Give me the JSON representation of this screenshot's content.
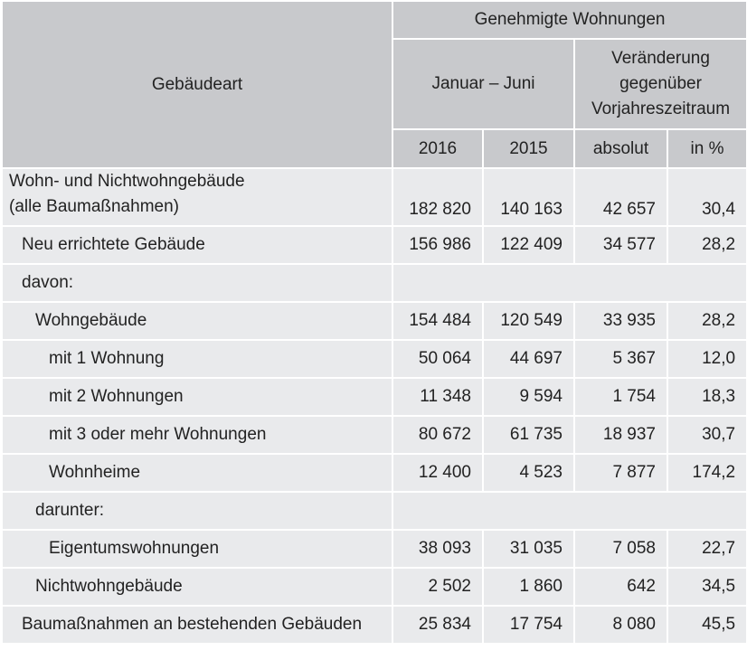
{
  "header": {
    "col_gebaeudeart": "Gebäudeart",
    "genehmigt": "Genehmigte Wohnungen",
    "period": "Januar – Juni",
    "change": "Veränderung gegenüber Vorjahreszeitraum",
    "y2016": "2016",
    "y2015": "2015",
    "absolut": "absolut",
    "pct": "in %"
  },
  "rows": [
    {
      "label_line1": "Wohn- und Nichtwohngebäude",
      "label_line2": "(alle Baumaßnahmen)",
      "v2016": "182 820",
      "v2015": "140 163",
      "abs": "42 657",
      "pct": "30,4"
    },
    {
      "label": "Neu errichtete Gebäude",
      "v2016": "156 986",
      "v2015": "122 409",
      "abs": "34 577",
      "pct": "28,2"
    },
    {
      "label": "davon:"
    },
    {
      "label": "Wohngebäude",
      "v2016": "154 484",
      "v2015": "120 549",
      "abs": "33 935",
      "pct": "28,2"
    },
    {
      "label": "mit 1 Wohnung",
      "v2016": "50 064",
      "v2015": "44 697",
      "abs": "5 367",
      "pct": "12,0"
    },
    {
      "label": "mit 2 Wohnungen",
      "v2016": "11 348",
      "v2015": "9 594",
      "abs": "1 754",
      "pct": "18,3"
    },
    {
      "label": "mit 3 oder mehr Wohnungen",
      "v2016": "80 672",
      "v2015": "61 735",
      "abs": "18 937",
      "pct": "30,7"
    },
    {
      "label": "Wohnheime",
      "v2016": "12 400",
      "v2015": "4 523",
      "abs": "7 877",
      "pct": "174,2"
    },
    {
      "label": "darunter:"
    },
    {
      "label": "Eigentumswohnungen",
      "v2016": "38 093",
      "v2015": "31 035",
      "abs": "7 058",
      "pct": "22,7"
    },
    {
      "label": "Nichtwohngebäude",
      "v2016": "2 502",
      "v2015": "1 860",
      "abs": "642",
      "pct": "34,5"
    },
    {
      "label": "Baumaßnahmen an bestehenden Gebäuden",
      "v2016": "25 834",
      "v2015": "17 754",
      "abs": "8 080",
      "pct": "45,5"
    }
  ]
}
